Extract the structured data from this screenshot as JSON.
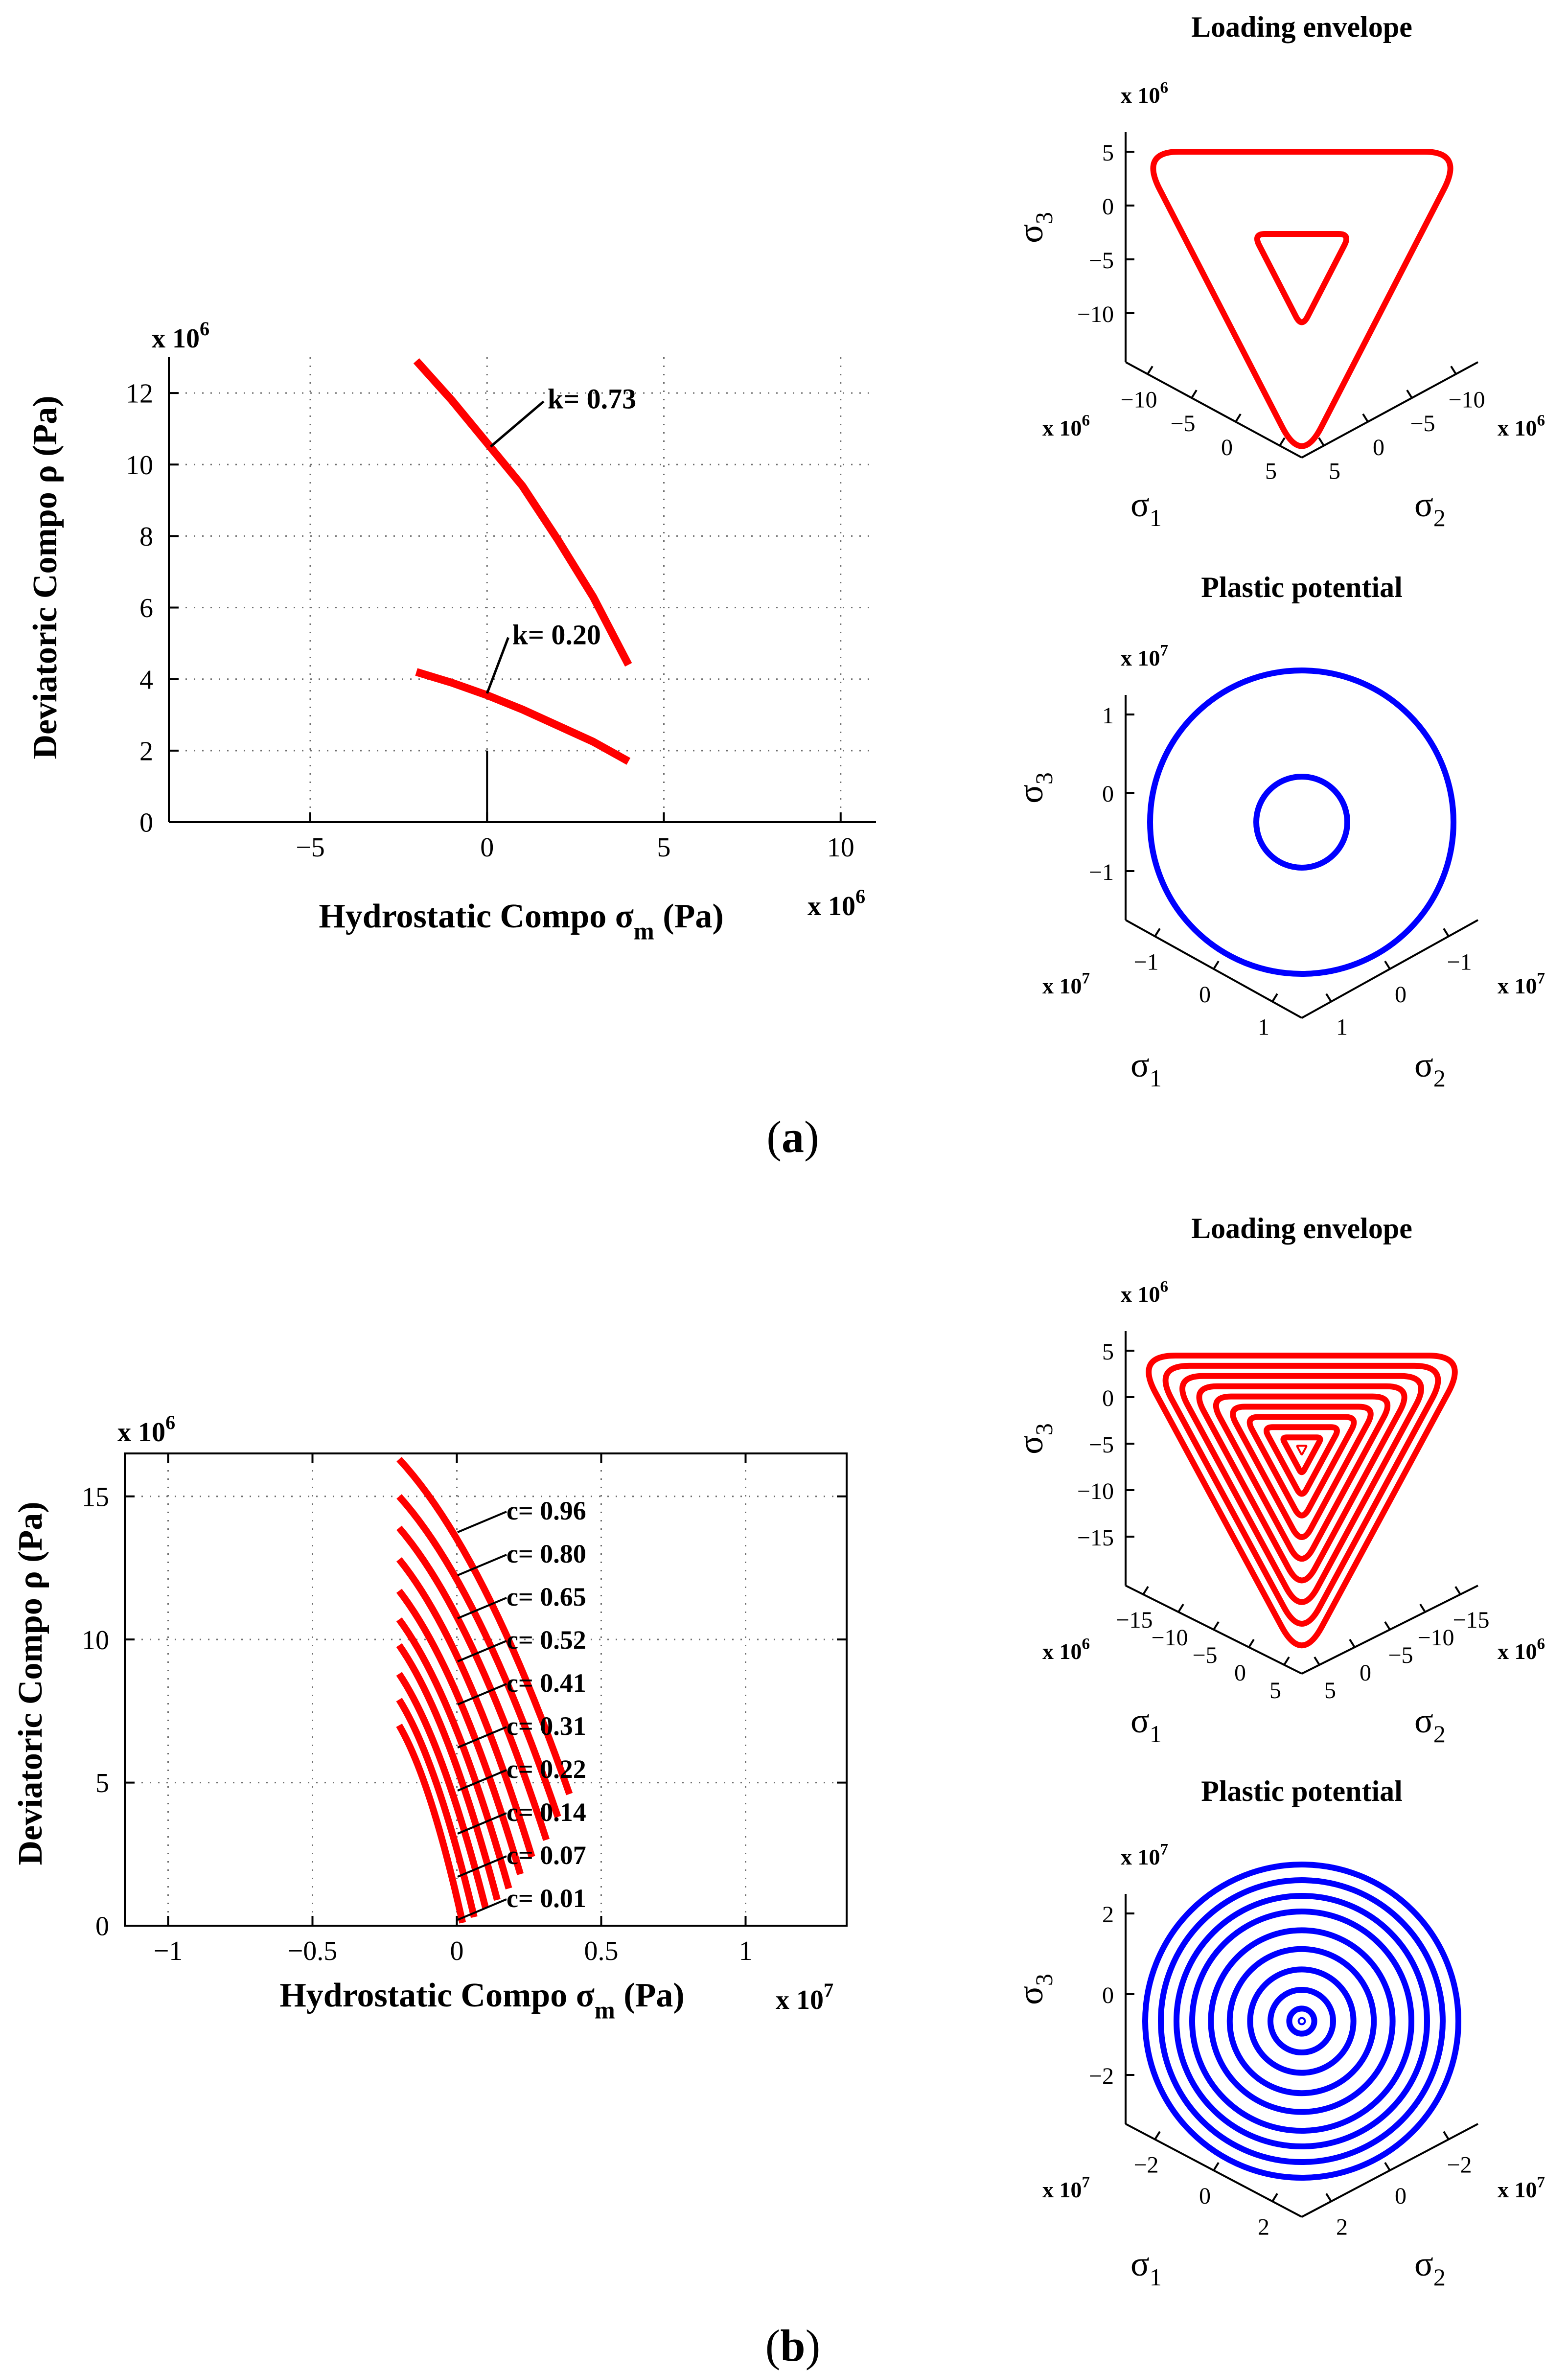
{
  "captions": {
    "a": "a",
    "b": "b"
  },
  "colors": {
    "red": "#ff0000",
    "blue": "#0000ff",
    "axis": "#000000",
    "grid": "#6e6e6e"
  },
  "chart_data": [
    {
      "id": "a-left",
      "type": "line",
      "xlabel": "Hydrostatic Compo",
      "xsym": "σ",
      "xsub": "m",
      "xunit": "(Pa)",
      "ylabel": "Deviatoric  Compo ρ (Pa)",
      "x_multiplier": "x 10",
      "x_multiplier_exp": "6",
      "y_multiplier": "x 10",
      "y_multiplier_exp": "6",
      "xlim": [
        -9,
        11
      ],
      "ylim": [
        0,
        13
      ],
      "xticks": [
        -5,
        0,
        5,
        10
      ],
      "yticks": [
        0,
        2,
        4,
        6,
        8,
        10,
        12
      ],
      "xtick_labels": [
        "−5",
        "0",
        "5",
        "10"
      ],
      "ytick_labels": [
        "0",
        "2",
        "4",
        "6",
        "8",
        "10",
        "12"
      ],
      "grid": true,
      "box": false,
      "series": [
        {
          "name": "k= 0.73",
          "label": "k= 0.73",
          "x": [
            -2,
            -1,
            0,
            1,
            2,
            3,
            4
          ],
          "y": [
            12.9,
            11.8,
            10.6,
            9.4,
            7.9,
            6.3,
            4.4
          ],
          "label_at": [
            1.6,
            11.9
          ],
          "anchor": [
            0.1,
            10.5
          ]
        },
        {
          "name": "k= 0.20",
          "label": "k= 0.20",
          "x": [
            -2,
            -1,
            0,
            1,
            2,
            3,
            4
          ],
          "y": [
            4.2,
            3.9,
            3.55,
            3.15,
            2.7,
            2.25,
            1.7
          ],
          "label_at": [
            0.6,
            5.3
          ],
          "anchor": [
            0.0,
            3.6
          ]
        }
      ],
      "marker_line": {
        "x": 0,
        "y": [
          0,
          2
        ]
      }
    },
    {
      "id": "b-left",
      "type": "line",
      "xlabel": "Hydrostatic Compo",
      "xsym": "σ",
      "xsub": "m",
      "xunit": "(Pa)",
      "ylabel": "Deviatoric  Compo ρ (Pa)",
      "x_multiplier": "x 10",
      "x_multiplier_exp": "7",
      "y_multiplier": "x 10",
      "y_multiplier_exp": "6",
      "xlim": [
        -1.15,
        1.35
      ],
      "ylim": [
        0,
        16.5
      ],
      "xticks": [
        -1,
        -0.5,
        0,
        0.5,
        1
      ],
      "yticks": [
        0,
        5,
        10,
        15
      ],
      "xtick_labels": [
        "−1",
        "−0.5",
        "0",
        "0.5",
        "1"
      ],
      "ytick_labels": [
        "0",
        "5",
        "10",
        "15"
      ],
      "grid": true,
      "box": true,
      "series": [
        {
          "name": "c= 0.96",
          "label": "c= 0.96",
          "x0": -0.2,
          "x1": 0.39,
          "y0": 16.3,
          "y1": 4.6
        },
        {
          "name": "c= 0.80",
          "label": "c= 0.80",
          "x0": -0.2,
          "x1": 0.35,
          "y0": 15.0,
          "y1": 3.8
        },
        {
          "name": "c= 0.65",
          "label": "c= 0.65",
          "x0": -0.2,
          "x1": 0.31,
          "y0": 13.9,
          "y1": 3.0
        },
        {
          "name": "c= 0.52",
          "label": "c= 0.52",
          "x0": -0.2,
          "x1": 0.26,
          "y0": 12.8,
          "y1": 2.4
        },
        {
          "name": "c= 0.41",
          "label": "c= 0.41",
          "x0": -0.2,
          "x1": 0.22,
          "y0": 11.7,
          "y1": 1.8
        },
        {
          "name": "c= 0.31",
          "label": "c= 0.31",
          "x0": -0.2,
          "x1": 0.18,
          "y0": 10.7,
          "y1": 1.3
        },
        {
          "name": "c= 0.22",
          "label": "c= 0.22",
          "x0": -0.2,
          "x1": 0.14,
          "y0": 9.8,
          "y1": 0.9
        },
        {
          "name": "c= 0.14",
          "label": "c= 0.14",
          "x0": -0.2,
          "x1": 0.1,
          "y0": 8.8,
          "y1": 0.6
        },
        {
          "name": "c= 0.07",
          "label": "c= 0.07",
          "x0": -0.2,
          "x1": 0.06,
          "y0": 7.9,
          "y1": 0.3
        },
        {
          "name": "c= 0.01",
          "label": "c= 0.01",
          "x0": -0.2,
          "x1": 0.02,
          "y0": 7.0,
          "y1": 0.1
        }
      ]
    },
    {
      "id": "a-loading",
      "type": "line",
      "projection": "3d-deviatoric",
      "title": "Loading envelope",
      "shape": "triangle",
      "color": "red",
      "z_multiplier": "x 10",
      "z_multiplier_exp": "6",
      "x_multiplier": "x 10",
      "x_multiplier_exp": "6",
      "y_multiplier": "x 10",
      "y_multiplier_exp": "6",
      "zticks": [
        "5",
        "0",
        "−5",
        "−10"
      ],
      "s1ticks": [
        "−10",
        "−5",
        "0",
        "5"
      ],
      "s2ticks": [
        "−10",
        "−5",
        "0",
        "5"
      ],
      "zlabel": "σ",
      "zsub": "3",
      "s1label": "σ",
      "s1sub": "1",
      "s2label": "σ",
      "s2sub": "2",
      "loops": [
        1.0,
        0.3
      ]
    },
    {
      "id": "a-plastic",
      "type": "line",
      "projection": "3d-deviatoric",
      "title": "Plastic potential",
      "shape": "circle",
      "color": "blue",
      "z_multiplier": "x 10",
      "z_multiplier_exp": "7",
      "x_multiplier": "x 10",
      "x_multiplier_exp": "7",
      "y_multiplier": "x 10",
      "y_multiplier_exp": "7",
      "zticks": [
        "1",
        "0",
        "−1"
      ],
      "s1ticks": [
        "−1",
        "0",
        "1"
      ],
      "s2ticks": [
        "−1",
        "0",
        "1"
      ],
      "zlabel": "σ",
      "zsub": "3",
      "s1label": "σ",
      "s1sub": "1",
      "s2label": "σ",
      "s2sub": "2",
      "loops": [
        1.0,
        0.3
      ]
    },
    {
      "id": "b-loading",
      "type": "line",
      "projection": "3d-deviatoric",
      "title": "Loading envelope",
      "shape": "triangle",
      "color": "red",
      "z_multiplier": "x 10",
      "z_multiplier_exp": "6",
      "x_multiplier": "x 10",
      "x_multiplier_exp": "6",
      "y_multiplier": "x 10",
      "y_multiplier_exp": "6",
      "zticks": [
        "5",
        "0",
        "−5",
        "−10",
        "−15"
      ],
      "s1ticks": [
        "−15",
        "−10",
        "−5",
        "0",
        "5"
      ],
      "s2ticks": [
        "−15",
        "−10",
        "−5",
        "0",
        "5"
      ],
      "zlabel": "σ",
      "zsub": "3",
      "s1label": "σ",
      "s1sub": "1",
      "s2label": "σ",
      "s2sub": "2",
      "loops": [
        1.0,
        0.89,
        0.78,
        0.67,
        0.56,
        0.45,
        0.34,
        0.23,
        0.12,
        0.03
      ]
    },
    {
      "id": "b-plastic",
      "type": "line",
      "projection": "3d-deviatoric",
      "title": "Plastic potential",
      "shape": "circle",
      "color": "blue",
      "z_multiplier": "x 10",
      "z_multiplier_exp": "7",
      "x_multiplier": "x 10",
      "x_multiplier_exp": "7",
      "y_multiplier": "x 10",
      "y_multiplier_exp": "7",
      "zticks": [
        "2",
        "0",
        "−2"
      ],
      "s1ticks": [
        "−2",
        "0",
        "2"
      ],
      "s2ticks": [
        "−2",
        "0",
        "2"
      ],
      "zlabel": "σ",
      "zsub": "3",
      "s1label": "σ",
      "s1sub": "1",
      "s2label": "σ",
      "s2sub": "2",
      "loops": [
        1.0,
        0.9,
        0.8,
        0.7,
        0.58,
        0.46,
        0.33,
        0.2,
        0.08,
        0.02
      ]
    }
  ]
}
